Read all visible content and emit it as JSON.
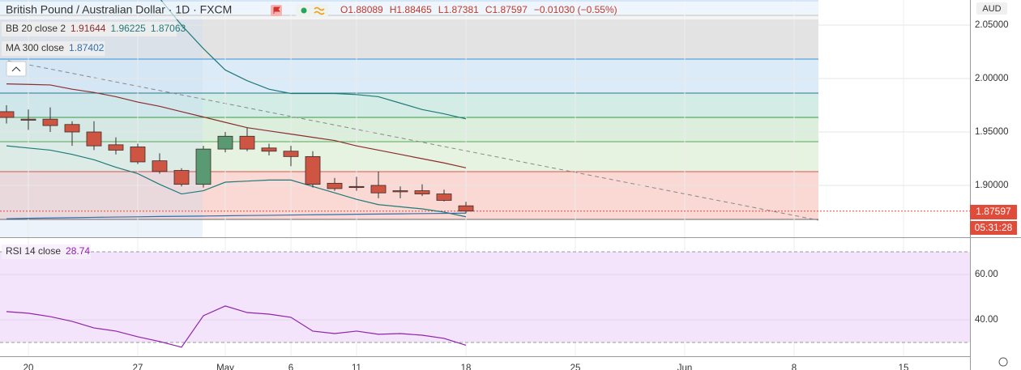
{
  "header": {
    "symbol": "British Pound / Australian Dollar · 1D · FXCM",
    "ohlc": [
      "O1.88089",
      "H1.88465",
      "L1.87381",
      "C1.87597",
      "−0.01030 (−0.55%)"
    ],
    "currency": "AUD",
    "last_price": "1.87597",
    "countdown": "05:31:28"
  },
  "chart_data": [
    {
      "type": "candlestick",
      "categories": [
        null,
        "20",
        null,
        null,
        null,
        null,
        "27",
        null,
        null,
        null,
        "May",
        null,
        null,
        "6",
        null,
        null,
        "11",
        null,
        null,
        null,
        null,
        "18"
      ],
      "future_categories": [
        "25",
        "Jun",
        "8",
        "15"
      ],
      "open": [
        1.969,
        1.962,
        1.962,
        1.957,
        1.95,
        1.938,
        1.936,
        1.923,
        1.914,
        1.901,
        1.934,
        1.946,
        1.935,
        1.932,
        1.927,
        1.902,
        1.899,
        1.9,
        1.895,
        1.895,
        1.892,
        1.88089
      ],
      "high": [
        1.975,
        1.971,
        1.973,
        1.96,
        1.96,
        1.945,
        1.939,
        1.93,
        1.916,
        1.937,
        1.95,
        1.954,
        1.939,
        1.937,
        1.932,
        1.907,
        1.908,
        1.913,
        1.899,
        1.901,
        1.896,
        1.88465
      ],
      "low": [
        1.958,
        1.952,
        1.95,
        1.937,
        1.933,
        1.929,
        1.92,
        1.911,
        1.899,
        1.898,
        1.931,
        1.932,
        1.928,
        1.918,
        1.898,
        1.895,
        1.895,
        1.888,
        1.888,
        1.89,
        1.885,
        1.87381
      ],
      "close": [
        1.9636,
        1.961,
        1.956,
        1.95,
        1.937,
        1.933,
        1.922,
        1.913,
        1.901,
        1.934,
        1.946,
        1.934,
        1.932,
        1.927,
        1.901,
        1.897,
        1.898,
        1.893,
        1.894,
        1.892,
        1.886,
        1.87597
      ],
      "up_color": "#5a9a72",
      "down_color": "#cf5543",
      "ylim": [
        1.8515,
        2.0735
      ],
      "yticks": [
        {
          "value": 1.9,
          "label": "1.90000"
        },
        {
          "value": 1.95,
          "label": "1.95000"
        },
        {
          "value": 2.0,
          "label": "2.00000"
        },
        {
          "value": 2.05,
          "label": "2.05000"
        }
      ],
      "grid": true,
      "indicators": [
        {
          "label": "BB 20 close 2",
          "readings": [
            1.91644,
            1.96225,
            1.87063
          ],
          "reading_colors": [
            "#8b2e2e",
            "#1f7a7a",
            "#1f7a7a"
          ],
          "lines": [
            {
              "color": "#8b2e2e",
              "values": [
                1.995,
                1.9945,
                1.994,
                1.99,
                1.987,
                1.983,
                1.978,
                1.974,
                1.969,
                1.964,
                1.959,
                1.954,
                1.951,
                1.948,
                1.945,
                1.942,
                1.937,
                1.933,
                1.929,
                1.925,
                1.921,
                1.91644
              ]
            },
            {
              "color": "#1f7a7a",
              "values": [
                null,
                null,
                null,
                null,
                null,
                null,
                null,
                2.075,
                2.05,
                2.028,
                2.008,
                1.998,
                1.99,
                1.986,
                1.986,
                1.986,
                1.985,
                1.983,
                1.977,
                1.971,
                1.967,
                1.96225
              ]
            },
            {
              "color": "#1f7a7a",
              "values": [
                1.937,
                1.935,
                1.933,
                1.929,
                1.924,
                1.917,
                1.911,
                1.901,
                1.892,
                1.895,
                1.903,
                1.904,
                1.905,
                1.905,
                1.899,
                1.893,
                1.887,
                1.882,
                1.88,
                1.878,
                1.875,
                1.87063
              ]
            }
          ]
        },
        {
          "label": "MA 300 close",
          "readings": [
            1.87402
          ],
          "reading_colors": [
            "#2f6fb0"
          ],
          "lines": [
            {
              "color": "#2f6fb0",
              "values": [
                1.8688,
                1.8692,
                1.8695,
                1.8698,
                1.8701,
                1.8704,
                1.8706,
                1.8709,
                1.8711,
                1.8713,
                1.8716,
                1.8718,
                1.872,
                1.8723,
                1.8725,
                1.8727,
                1.873,
                1.8732,
                1.8734,
                1.8736,
                1.8738,
                1.87402
              ]
            }
          ]
        }
      ]
    },
    {
      "type": "line",
      "label": "RSI 14 close",
      "reading": "28.74",
      "color": "#8e24aa",
      "values": [
        43.6,
        42.9,
        41.4,
        39.3,
        36.4,
        35,
        32.5,
        30.4,
        27.9,
        41.8,
        46.1,
        43.2,
        42.5,
        41.1,
        35,
        33.9,
        35,
        33.6,
        33.9,
        33.2,
        31.8,
        28.74
      ],
      "band": [
        30,
        70
      ],
      "ylim": [
        23.9,
        76.1
      ],
      "yticks": [
        {
          "value": 40,
          "label": "40.00"
        },
        {
          "value": 60,
          "label": "60.00"
        }
      ],
      "grid": true
    }
  ]
}
